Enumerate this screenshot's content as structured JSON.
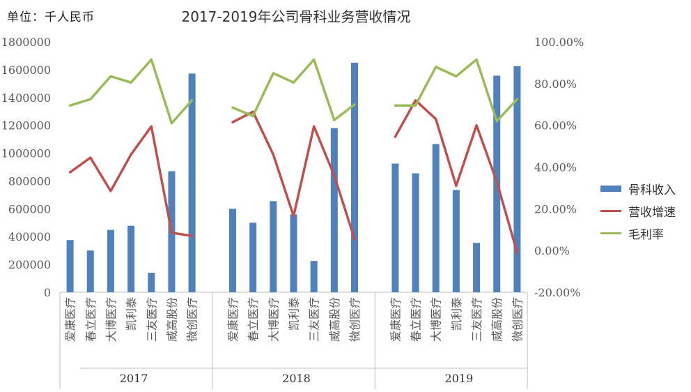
{
  "unit_label": "单位：千人民币",
  "colors": {
    "bar": "#4f81bd",
    "growth": "#c0504d",
    "margin": "#9bbb59",
    "axis": "#bfbfbf",
    "text": "#595959"
  },
  "chart_data": {
    "type": "bar",
    "title": "2017-2019年公司骨科业务营收情况",
    "groups": [
      {
        "label": "2017",
        "categories": [
          "爱康医疗",
          "春立医疗",
          "大博医疗",
          "凯利泰",
          "三友医疗",
          "威高股份",
          "微创医疗"
        ]
      },
      {
        "label": "2018",
        "categories": [
          "爱康医疗",
          "春立医疗",
          "大博医疗",
          "凯利泰",
          "三友医疗",
          "威高股份",
          "微创医疗"
        ]
      },
      {
        "label": "2019",
        "categories": [
          "爱康医疗",
          "春立医疗",
          "大博医疗",
          "凯利泰",
          "三友医疗",
          "威高股份",
          "微创医疗"
        ]
      }
    ],
    "y_left": {
      "min": 0,
      "max": 1800000,
      "step": 200000,
      "ticks": [
        "0",
        "200000",
        "400000",
        "600000",
        "800000",
        "1000000",
        "1200000",
        "1400000",
        "1600000",
        "1800000"
      ]
    },
    "y_right": {
      "min": -20,
      "max": 100,
      "step": 20,
      "ticks": [
        "-20.00%",
        "0.00%",
        "20.00%",
        "40.00%",
        "60.00%",
        "80.00%",
        "100.00%"
      ]
    },
    "series": [
      {
        "name": "骨科收入",
        "type": "bar",
        "axis": "left",
        "values": [
          [
            375000,
            300000,
            448000,
            478000,
            140000,
            870000,
            1572000
          ],
          [
            600000,
            500000,
            655000,
            560000,
            225000,
            1180000,
            1650000
          ],
          [
            925000,
            855000,
            1065000,
            735000,
            355000,
            1557000,
            1625000
          ]
        ]
      },
      {
        "name": "营收增速",
        "type": "line",
        "axis": "right",
        "values": [
          [
            37.5,
            44.5,
            28.5,
            46,
            59.5,
            8.5,
            7
          ],
          [
            61.5,
            66.5,
            46,
            16.5,
            59.5,
            36,
            5.5
          ],
          [
            54.5,
            72,
            63,
            31,
            60,
            33,
            -1
          ]
        ]
      },
      {
        "name": "毛利率",
        "type": "line",
        "axis": "right",
        "values": [
          [
            69.5,
            72.5,
            83.5,
            80.5,
            91.5,
            61,
            72
          ],
          [
            68.5,
            64.5,
            85,
            80.5,
            91.5,
            62.5,
            70
          ],
          [
            69.5,
            69.5,
            88,
            83.5,
            91.5,
            62,
            72.5
          ]
        ]
      }
    ]
  }
}
